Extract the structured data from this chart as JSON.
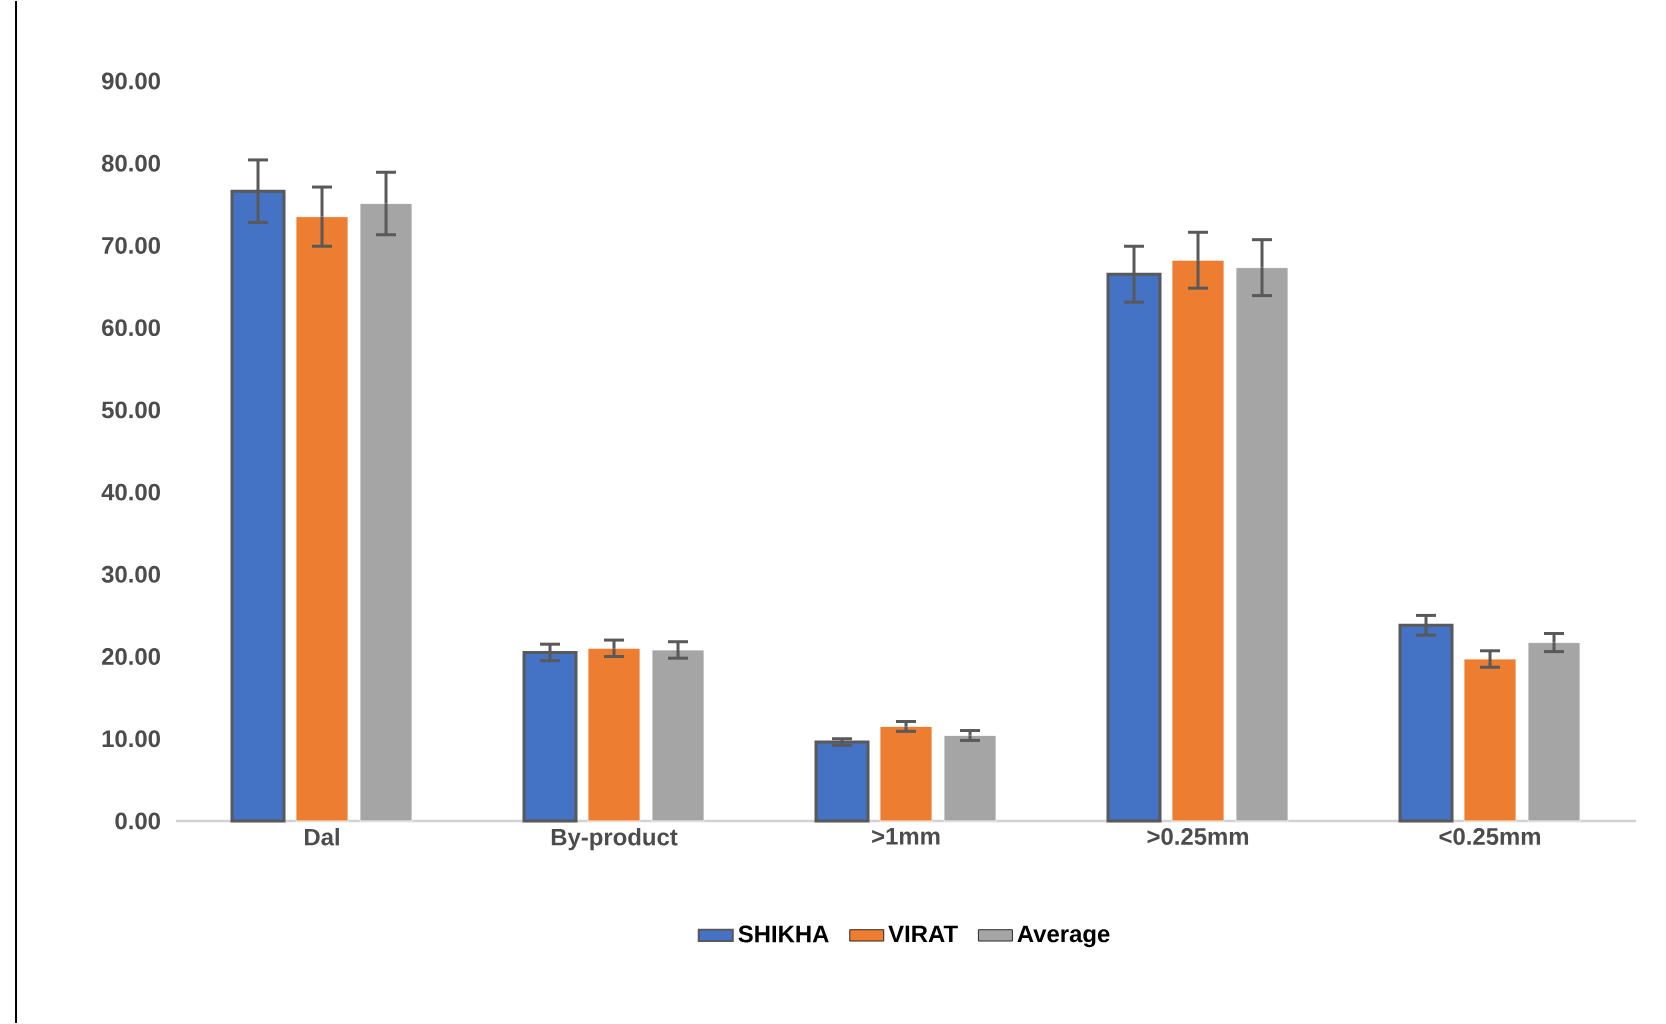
{
  "chart_data": {
    "type": "bar",
    "categories": [
      "Dal",
      "By-product",
      ">1mm",
      ">0.25mm",
      "<0.25mm"
    ],
    "series": [
      {
        "name": "SHIKHA",
        "color": "#4472c4",
        "values": [
          76.6,
          20.5,
          9.6,
          66.5,
          23.8
        ],
        "errors": [
          3.8,
          1.0,
          0.4,
          3.4,
          1.2
        ]
      },
      {
        "name": "VIRAT",
        "color": "#ed7d31",
        "values": [
          73.5,
          21.0,
          11.5,
          68.2,
          19.7
        ],
        "errors": [
          3.6,
          1.0,
          0.6,
          3.4,
          1.0
        ]
      },
      {
        "name": "Average",
        "color": "#a5a5a5",
        "values": [
          75.1,
          20.8,
          10.4,
          67.3,
          21.7
        ],
        "errors": [
          3.8,
          1.0,
          0.6,
          3.4,
          1.1
        ]
      }
    ],
    "ylim": [
      0,
      90
    ],
    "yticks": [
      {
        "value": 0,
        "label": "0.00"
      },
      {
        "value": 10,
        "label": "10.00"
      },
      {
        "value": 20,
        "label": "20.00"
      },
      {
        "value": 30,
        "label": "30.00"
      },
      {
        "value": 40,
        "label": "40.00"
      },
      {
        "value": 50,
        "label": "50.00"
      },
      {
        "value": 60,
        "label": "60.00"
      },
      {
        "value": 70,
        "label": "70.00"
      },
      {
        "value": 80,
        "label": "80.00"
      },
      {
        "value": 90,
        "label": "90.00"
      }
    ],
    "grid": false,
    "legend": "bottom"
  }
}
